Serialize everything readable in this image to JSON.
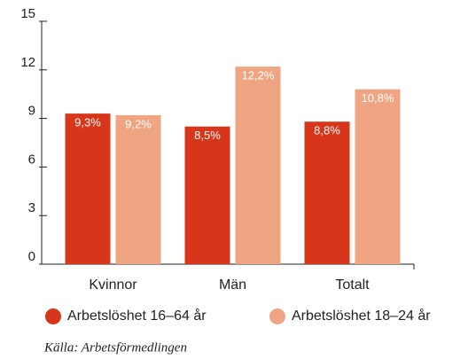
{
  "chart_data": {
    "type": "bar",
    "categories": [
      "Kvinnor",
      "Män",
      "Totalt"
    ],
    "series": [
      {
        "name": "Arbetslöshet 16–64 år",
        "color": "#d7361a",
        "values": [
          9.3,
          8.5,
          8.8
        ],
        "value_labels": [
          "9,3%",
          "8,5%",
          "8,8%"
        ]
      },
      {
        "name": "Arbetslöshet 18–24 år",
        "color": "#efa582",
        "values": [
          9.2,
          12.2,
          10.8
        ],
        "value_labels": [
          "9,2%",
          "12,2%",
          "10,8%"
        ]
      }
    ],
    "ylim": [
      0,
      15
    ],
    "yticks": [
      0,
      3,
      6,
      9,
      12,
      15
    ],
    "source": "Källa: Arbetsförmedlingen"
  }
}
